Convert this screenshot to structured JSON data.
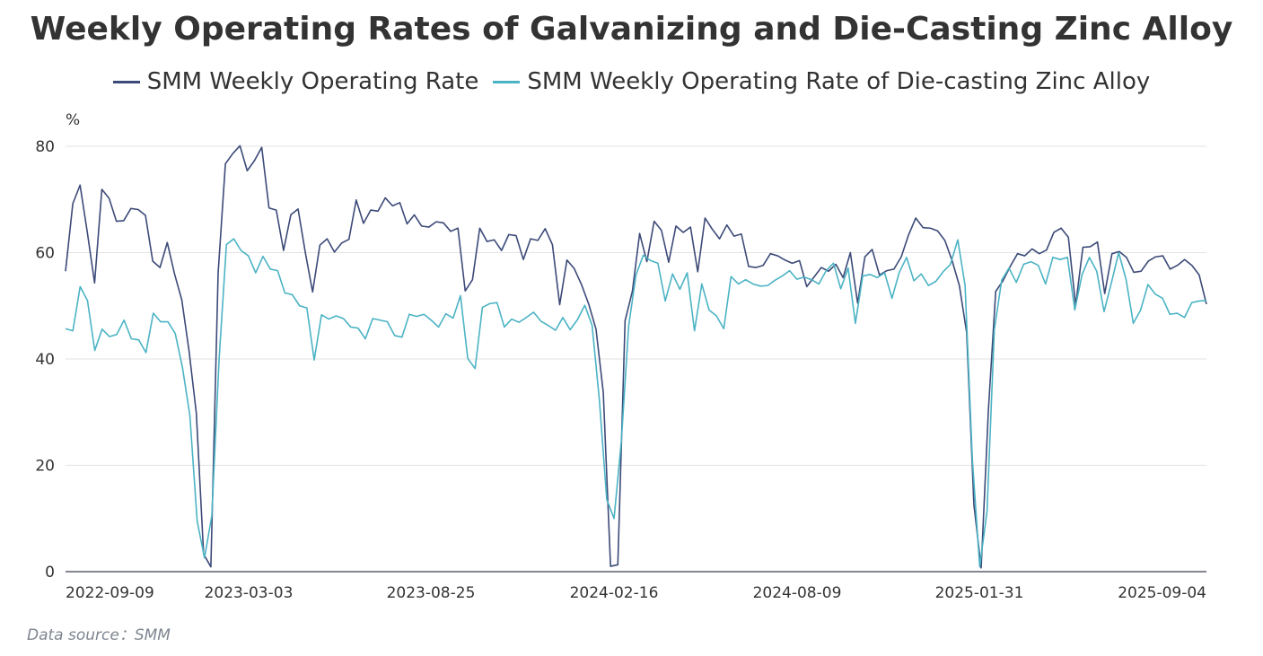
{
  "chart_data": {
    "type": "line",
    "title": "Weekly Operating Rates of Galvanizing and Die-Casting Zinc Alloy",
    "y_unit": "%",
    "ylim": [
      0,
      80
    ],
    "y_ticks": [
      "0",
      "20",
      "40",
      "60",
      "80"
    ],
    "x_tick_labels": [
      "2022-09-09",
      "2023-03-03",
      "2023-08-25",
      "2024-02-16",
      "2024-08-09",
      "2025-01-31",
      "2025-09-04"
    ],
    "grid": "horizontal",
    "legend_position": "top",
    "source": "Data source：SMM",
    "series": [
      {
        "name": "SMM Weekly Operating Rate",
        "color": "#3c4a78",
        "values": [
          56.5,
          69.2,
          72.7,
          63.8,
          54.3,
          71.9,
          70.2,
          65.9,
          66.0,
          68.3,
          68.1,
          67.0,
          58.4,
          57.2,
          61.9,
          56.0,
          51.1,
          41.5,
          29.8,
          3.3,
          0.9,
          56.2,
          76.7,
          78.6,
          80.1,
          75.4,
          77.3,
          79.8,
          68.4,
          68.0,
          60.4,
          67.1,
          68.2,
          60.0,
          52.6,
          61.4,
          62.6,
          60.1,
          61.8,
          62.5,
          69.9,
          65.5,
          68.0,
          67.8,
          70.3,
          68.8,
          69.4,
          65.4,
          67.1,
          65.0,
          64.8,
          65.8,
          65.6,
          64.0,
          64.6,
          52.8,
          54.9,
          64.6,
          62.1,
          62.4,
          60.4,
          63.4,
          63.2,
          58.7,
          62.6,
          62.3,
          64.5,
          61.5,
          50.2,
          58.6,
          57.0,
          54.0,
          50.3,
          45.6,
          33.7,
          1.0,
          1.3,
          47.2,
          52.7,
          63.6,
          58.3,
          65.9,
          64.2,
          58.2,
          65.0,
          63.8,
          64.8,
          56.4,
          66.5,
          64.4,
          62.6,
          65.2,
          63.1,
          63.5,
          57.4,
          57.2,
          57.6,
          59.8,
          59.4,
          58.6,
          58.0,
          58.5,
          53.6,
          55.4,
          57.2,
          56.5,
          57.8,
          55.3,
          60.0,
          50.5,
          59.2,
          60.6,
          55.8,
          56.6,
          56.9,
          59.2,
          63.3,
          66.5,
          64.7,
          64.6,
          64.1,
          62.3,
          58.5,
          53.8,
          45.0,
          12.6,
          0.7,
          30.5,
          52.7,
          54.7,
          57.4,
          59.8,
          59.4,
          60.7,
          59.8,
          60.5,
          63.8,
          64.6,
          62.9,
          50.1,
          61.0,
          61.1,
          62.0,
          52.3,
          59.8,
          60.2,
          59.1,
          56.3,
          56.5,
          58.4,
          59.2,
          59.4,
          56.9,
          57.6,
          58.7,
          57.6,
          55.8,
          50.3
        ]
      },
      {
        "name": "SMM Weekly Operating Rate of Die-casting Zinc Alloy",
        "color": "#4bb3c4",
        "values": [
          45.7,
          45.3,
          53.6,
          51.0,
          41.6,
          45.6,
          44.2,
          44.6,
          47.3,
          43.8,
          43.6,
          41.2,
          48.6,
          47.0,
          47.0,
          44.8,
          38.3,
          29.4,
          9.5,
          2.6,
          10.5,
          40.0,
          61.5,
          62.6,
          60.4,
          59.4,
          56.2,
          59.3,
          56.9,
          56.6,
          52.4,
          52.1,
          50.0,
          49.6,
          39.8,
          48.3,
          47.5,
          48.1,
          47.6,
          46.0,
          45.8,
          43.8,
          47.6,
          47.3,
          47.0,
          44.4,
          44.1,
          48.4,
          48.0,
          48.4,
          47.3,
          46.0,
          48.5,
          47.7,
          51.9,
          40.1,
          38.2,
          49.7,
          50.4,
          50.6,
          46.0,
          47.5,
          46.9,
          47.8,
          48.8,
          47.1,
          46.3,
          45.4,
          47.8,
          45.5,
          47.4,
          50.1,
          46.3,
          32.2,
          13.6,
          10.0,
          24.6,
          46.2,
          55.8,
          59.5,
          58.5,
          58.0,
          50.9,
          56.0,
          53.1,
          56.2,
          45.3,
          54.1,
          49.2,
          48.1,
          45.7,
          55.5,
          54.1,
          54.9,
          54.1,
          53.7,
          53.8,
          54.8,
          55.6,
          56.6,
          55.0,
          55.4,
          54.9,
          54.1,
          56.6,
          58.0,
          53.2,
          57.1,
          46.7,
          55.6,
          55.9,
          55.3,
          56.2,
          51.4,
          56.3,
          59.1,
          54.7,
          56.0,
          53.8,
          54.6,
          56.4,
          57.8,
          62.4,
          53.8,
          21.0,
          0.9,
          11.4,
          45.5,
          54.8,
          57.1,
          54.4,
          57.8,
          58.3,
          57.6,
          54.1,
          59.1,
          58.7,
          59.1,
          49.2,
          55.9,
          59.1,
          56.5,
          48.9,
          54.3,
          60.0,
          55.0,
          46.7,
          49.2,
          54.0,
          52.2,
          51.4,
          48.4,
          48.6,
          47.8,
          50.6,
          50.9,
          51.0
        ]
      }
    ]
  }
}
